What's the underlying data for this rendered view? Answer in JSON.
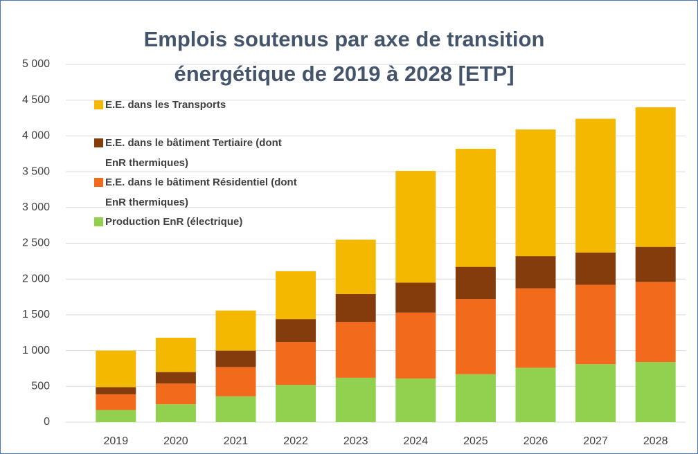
{
  "chart_data": {
    "type": "stacked_bar",
    "title": "Emplois soutenus par axe de transition énergétique de 2019 à 2028 [ETP]",
    "categories": [
      "2019",
      "2020",
      "2021",
      "2022",
      "2023",
      "2024",
      "2025",
      "2026",
      "2027",
      "2028"
    ],
    "series": [
      {
        "name": "Production EnR (électrique)",
        "color": "#92d050",
        "values": [
          170,
          250,
          360,
          520,
          620,
          610,
          670,
          760,
          810,
          840
        ]
      },
      {
        "name": "E.E. dans le bâtiment Résidentiel (dont EnR thermiques)",
        "color": "#f26b1d",
        "values": [
          220,
          290,
          410,
          600,
          780,
          920,
          1050,
          1110,
          1110,
          1120
        ]
      },
      {
        "name": "E.E. dans le bâtiment Tertiaire (dont EnR thermiques)",
        "color": "#843c0c",
        "values": [
          100,
          160,
          230,
          320,
          390,
          420,
          450,
          450,
          450,
          490
        ]
      },
      {
        "name": "E.E. dans les Transports",
        "color": "#f5b800",
        "values": [
          510,
          480,
          560,
          670,
          760,
          1560,
          1650,
          1770,
          1870,
          1950
        ]
      }
    ],
    "ylim": [
      0,
      5000
    ],
    "yticks": [
      0,
      500,
      {
        "value": 1000,
        "label": "1 000"
      },
      {
        "value": 1500,
        "label": "1 500"
      },
      {
        "value": 2000,
        "label": "2 000"
      },
      {
        "value": 2500,
        "label": "2 500"
      },
      {
        "value": 3000,
        "label": "3 000"
      },
      {
        "value": 3500,
        "label": "3 500"
      },
      {
        "value": 4000,
        "label": "4 000"
      },
      {
        "value": 4500,
        "label": "4 500"
      },
      {
        "value": 5000,
        "label": "5 000"
      }
    ],
    "grid": true
  }
}
